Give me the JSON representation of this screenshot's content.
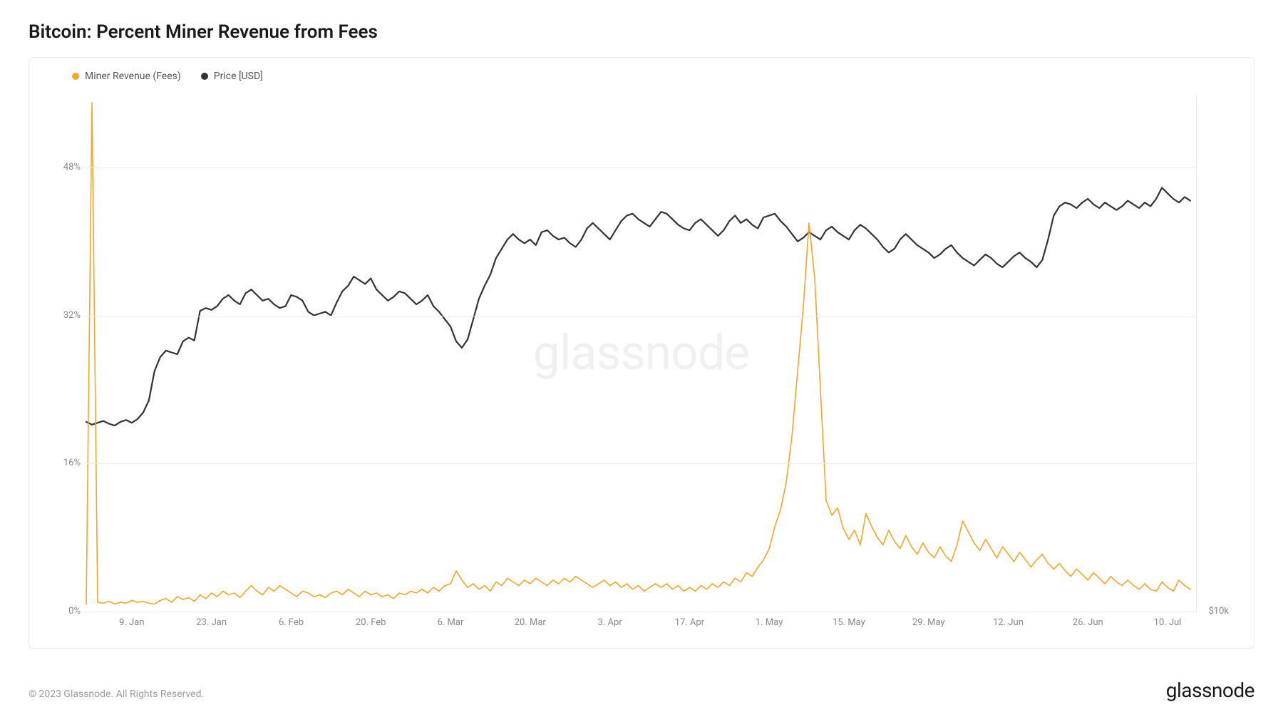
{
  "title": "Bitcoin: Percent Miner Revenue from Fees",
  "copyright": "© 2023 Glassnode. All Rights Reserved.",
  "brand": "glassnode",
  "watermark": "glassnode",
  "legend": {
    "fees": {
      "label": "Miner Revenue (Fees)",
      "color": "#f5a623"
    },
    "price": {
      "label": "Price [USD]",
      "color": "#333333"
    }
  },
  "chart": {
    "type": "line_dual_axis",
    "background_color": "#ffffff",
    "grid_color": "#f0f0f0",
    "border_color": "#e8e8e8",
    "axis_label_color": "#888888",
    "axis_label_fontsize": 13,
    "title_fontsize": 26,
    "line_width_fees": 1.6,
    "line_width_price": 2.2,
    "y_left": {
      "min": 0,
      "max": 56,
      "ticks": [
        {
          "value": 0,
          "label": "0%"
        },
        {
          "value": 16,
          "label": "16%"
        },
        {
          "value": 32,
          "label": "32%"
        },
        {
          "value": 48,
          "label": "48%"
        }
      ]
    },
    "y_right": {
      "ticks": [
        {
          "value": 0,
          "label": "$10k"
        }
      ]
    },
    "x": {
      "min": 0,
      "max": 195,
      "ticks": [
        {
          "value": 8,
          "label": "9. Jan"
        },
        {
          "value": 22,
          "label": "23. Jan"
        },
        {
          "value": 36,
          "label": "6. Feb"
        },
        {
          "value": 50,
          "label": "20. Feb"
        },
        {
          "value": 64,
          "label": "6. Mar"
        },
        {
          "value": 78,
          "label": "20. Mar"
        },
        {
          "value": 92,
          "label": "3. Apr"
        },
        {
          "value": 106,
          "label": "17. Apr"
        },
        {
          "value": 120,
          "label": "1. May"
        },
        {
          "value": 134,
          "label": "15. May"
        },
        {
          "value": 148,
          "label": "29. May"
        },
        {
          "value": 162,
          "label": "12. Jun"
        },
        {
          "value": 176,
          "label": "26. Jun"
        },
        {
          "value": 190,
          "label": "10. Jul"
        }
      ]
    },
    "series": {
      "price_y": [
        20.5,
        20.2,
        20.4,
        20.6,
        20.3,
        20.1,
        20.5,
        20.7,
        20.4,
        20.8,
        21.5,
        22.8,
        26.0,
        27.5,
        28.2,
        28.0,
        27.8,
        29.2,
        29.6,
        29.3,
        32.5,
        32.8,
        32.6,
        33.0,
        33.8,
        34.2,
        33.6,
        33.2,
        34.4,
        34.8,
        34.2,
        33.6,
        33.8,
        33.2,
        32.8,
        33.0,
        34.2,
        34.0,
        33.6,
        32.4,
        32.0,
        32.2,
        32.4,
        32.0,
        33.4,
        34.6,
        35.2,
        36.2,
        35.8,
        35.4,
        36.0,
        34.8,
        34.2,
        33.6,
        34.0,
        34.6,
        34.4,
        33.8,
        33.2,
        33.6,
        34.2,
        33.0,
        32.4,
        31.6,
        30.8,
        29.2,
        28.5,
        29.4,
        31.6,
        33.8,
        35.2,
        36.4,
        38.2,
        39.2,
        40.2,
        40.8,
        40.2,
        39.8,
        40.2,
        39.6,
        41.0,
        41.2,
        40.6,
        40.2,
        40.4,
        39.8,
        39.4,
        40.2,
        41.4,
        42.0,
        41.4,
        40.8,
        40.2,
        41.2,
        42.2,
        42.8,
        43.0,
        42.4,
        42.0,
        41.6,
        42.4,
        43.2,
        43.0,
        42.4,
        41.8,
        41.4,
        41.2,
        42.0,
        42.4,
        41.8,
        41.2,
        40.6,
        41.2,
        42.2,
        42.8,
        42.0,
        42.4,
        41.8,
        41.4,
        42.6,
        42.8,
        43.0,
        42.2,
        41.6,
        40.8,
        40.0,
        40.4,
        41.0,
        40.6,
        40.2,
        41.2,
        41.6,
        41.0,
        40.6,
        40.2,
        41.2,
        41.8,
        41.4,
        40.8,
        40.2,
        39.4,
        38.8,
        39.2,
        40.2,
        40.8,
        40.2,
        39.6,
        39.2,
        38.8,
        38.2,
        38.6,
        39.2,
        39.6,
        38.8,
        38.2,
        37.8,
        37.4,
        38.0,
        38.6,
        38.2,
        37.6,
        37.2,
        37.8,
        38.4,
        38.8,
        38.2,
        37.8,
        37.2,
        38.0,
        40.2,
        42.8,
        43.8,
        44.2,
        44.0,
        43.6,
        44.2,
        44.6,
        44.0,
        43.6,
        44.2,
        43.8,
        43.4,
        43.8,
        44.4,
        44.0,
        43.6,
        44.2,
        43.8,
        44.6,
        45.8,
        45.2,
        44.6,
        44.2,
        44.8,
        44.4
      ],
      "fees_y": [
        0.8,
        55.0,
        1.0,
        0.9,
        1.1,
        0.8,
        1.0,
        0.9,
        1.2,
        1.0,
        1.1,
        0.9,
        0.8,
        1.2,
        1.4,
        1.0,
        1.6,
        1.3,
        1.5,
        1.1,
        1.8,
        1.4,
        2.0,
        1.6,
        2.2,
        1.8,
        2.0,
        1.5,
        2.2,
        2.8,
        2.2,
        1.8,
        2.6,
        2.2,
        2.8,
        2.4,
        2.0,
        1.6,
        2.2,
        2.0,
        1.6,
        1.8,
        1.5,
        2.0,
        2.2,
        1.8,
        2.4,
        2.0,
        1.6,
        2.2,
        1.8,
        2.0,
        1.6,
        1.8,
        1.4,
        2.0,
        1.8,
        2.2,
        2.0,
        2.4,
        2.0,
        2.6,
        2.2,
        2.8,
        3.0,
        4.4,
        3.4,
        2.6,
        3.0,
        2.4,
        2.8,
        2.2,
        3.2,
        2.8,
        3.6,
        3.2,
        2.8,
        3.4,
        3.0,
        3.6,
        3.2,
        2.8,
        3.4,
        3.0,
        3.6,
        3.2,
        3.8,
        3.4,
        3.0,
        2.6,
        3.0,
        3.4,
        2.8,
        3.2,
        2.6,
        3.0,
        2.4,
        2.8,
        2.2,
        2.6,
        3.0,
        2.6,
        3.0,
        2.4,
        2.8,
        2.2,
        2.6,
        2.2,
        2.8,
        2.4,
        3.0,
        2.6,
        3.2,
        2.8,
        3.6,
        3.2,
        4.2,
        3.8,
        4.8,
        5.6,
        6.8,
        9.2,
        11.0,
        14.0,
        19.0,
        26.0,
        33.0,
        42.0,
        36.0,
        24.0,
        12.0,
        10.4,
        11.2,
        9.0,
        7.8,
        8.8,
        7.2,
        10.6,
        9.2,
        8.0,
        7.2,
        8.8,
        7.6,
        6.8,
        8.2,
        7.0,
        6.2,
        7.4,
        6.4,
        5.8,
        7.0,
        6.0,
        5.4,
        7.2,
        9.8,
        8.6,
        7.4,
        6.6,
        7.8,
        6.8,
        5.8,
        7.0,
        6.2,
        5.4,
        6.4,
        5.6,
        4.8,
        5.6,
        6.2,
        5.2,
        4.6,
        5.2,
        4.4,
        3.8,
        4.6,
        4.0,
        3.4,
        4.2,
        3.6,
        3.0,
        3.8,
        3.2,
        2.8,
        3.4,
        2.8,
        2.4,
        3.0,
        2.4,
        2.2,
        3.2,
        2.6,
        2.2,
        3.4,
        2.8,
        2.4
      ]
    }
  }
}
